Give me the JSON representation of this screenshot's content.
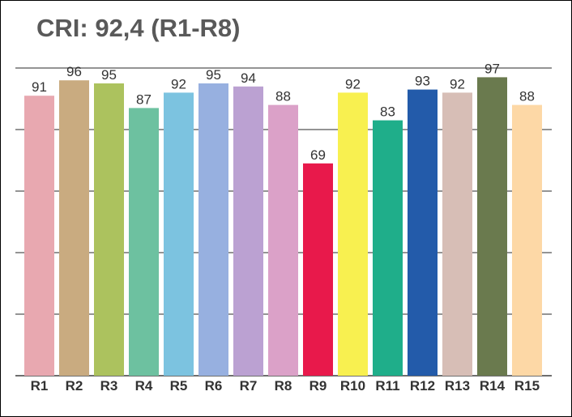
{
  "chart_data": {
    "type": "bar",
    "title": "CRI: 92,4 (R1-R8)",
    "xlabel": "",
    "ylabel": "",
    "categories": [
      "R1",
      "R2",
      "R3",
      "R4",
      "R5",
      "R6",
      "R7",
      "R8",
      "R9",
      "R10",
      "R11",
      "R12",
      "R13",
      "R14",
      "R15"
    ],
    "values": [
      91,
      96,
      95,
      87,
      92,
      95,
      94,
      88,
      69,
      92,
      83,
      93,
      92,
      97,
      88
    ],
    "value_labels": [
      "91",
      "96",
      "95",
      "87",
      "92",
      "95",
      "94",
      "88",
      "69",
      "92",
      "83",
      "93",
      "92",
      "97",
      "88"
    ],
    "colors": [
      "#E8A8B0",
      "#C9AB80",
      "#ACC25E",
      "#6DC1A0",
      "#7CC3E0",
      "#97B0E0",
      "#BBA1D2",
      "#DBA1C8",
      "#E8194B",
      "#F8F050",
      "#1FAE8A",
      "#235BAA",
      "#D7BEB6",
      "#6A7A4E",
      "#FDD8A6"
    ],
    "ylim": [
      0,
      100
    ],
    "grid": true,
    "gridlines": [
      0,
      20,
      40,
      60,
      80,
      100
    ],
    "legend": "none"
  }
}
